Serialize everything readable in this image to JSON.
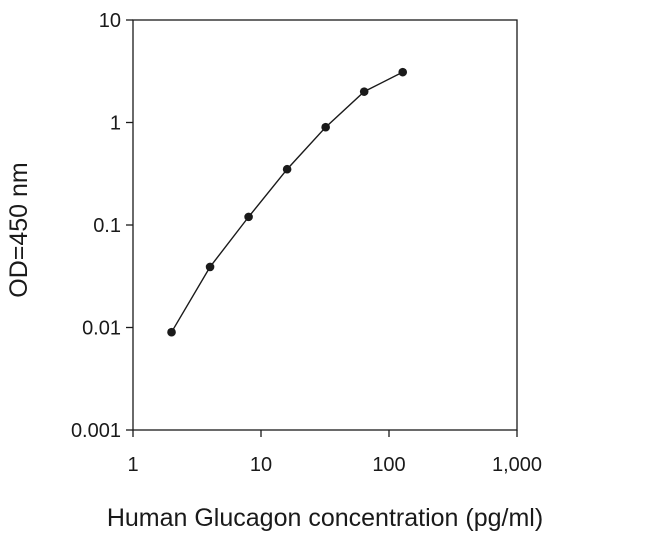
{
  "chart_data": {
    "type": "line",
    "xlabel": "Human Glucagon concentration (pg/ml)",
    "ylabel": "OD=450 nm",
    "xscale": "log",
    "yscale": "log",
    "xlim": [
      1,
      1000
    ],
    "ylim": [
      0.001,
      10
    ],
    "x_ticks": [
      {
        "value": 1,
        "label": "1"
      },
      {
        "value": 10,
        "label": "10"
      },
      {
        "value": 100,
        "label": "100"
      },
      {
        "value": 1000,
        "label": "1,000"
      }
    ],
    "y_ticks": [
      {
        "value": 0.001,
        "label": "0.001"
      },
      {
        "value": 0.01,
        "label": "0.01"
      },
      {
        "value": 0.1,
        "label": "0.1"
      },
      {
        "value": 1,
        "label": "1"
      },
      {
        "value": 10,
        "label": "10"
      }
    ],
    "grid": false,
    "legend": "none",
    "series": [
      {
        "x": [
          2,
          4,
          8,
          16,
          32,
          64,
          128
        ],
        "y": [
          0.009,
          0.039,
          0.12,
          0.35,
          0.9,
          2.0,
          3.1
        ],
        "color": "#1a1a1a",
        "marker": "circle"
      }
    ]
  }
}
